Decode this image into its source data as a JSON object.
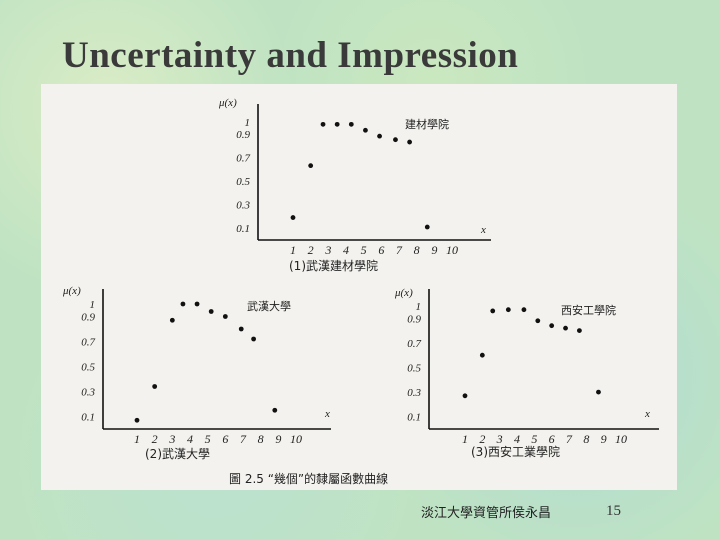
{
  "slide": {
    "title": "Uncertainty and Impression",
    "footer": "淡江大學資管所侯永昌",
    "page_number": "15",
    "figure_caption": "圖 2.5 “幾個”的隸屬函數曲線"
  },
  "chart_data": [
    {
      "type": "scatter",
      "subtitle": "(1)武漢建材學院",
      "legend": "建材學院",
      "ylabel": "μ(x)",
      "xlabel": "x",
      "y_ticks": [
        "1",
        "0.9",
        "0.7",
        "0.5",
        "0.3",
        "0.1"
      ],
      "y_tick_values": [
        1,
        0.9,
        0.7,
        0.5,
        0.3,
        0.1
      ],
      "x_ticks": [
        "1",
        "2",
        "3",
        "4",
        "5",
        "6",
        "7",
        "8",
        "9",
        "10"
      ],
      "ylim": [
        0,
        1.1
      ],
      "points": [
        {
          "x": 1,
          "y": 0.19
        },
        {
          "x": 2,
          "y": 0.63
        },
        {
          "x": 2.7,
          "y": 0.98
        },
        {
          "x": 3.5,
          "y": 0.98
        },
        {
          "x": 4.3,
          "y": 0.98
        },
        {
          "x": 5.1,
          "y": 0.93
        },
        {
          "x": 5.9,
          "y": 0.88
        },
        {
          "x": 6.8,
          "y": 0.85
        },
        {
          "x": 7.6,
          "y": 0.83
        },
        {
          "x": 8.6,
          "y": 0.11
        }
      ]
    },
    {
      "type": "scatter",
      "subtitle": "(2)武漢大學",
      "legend": "武漢大學",
      "ylabel": "μ(x)",
      "xlabel": "x",
      "y_ticks": [
        "1",
        "0.9",
        "0.7",
        "0.5",
        "0.3",
        "0.1"
      ],
      "y_tick_values": [
        1,
        0.9,
        0.7,
        0.5,
        0.3,
        0.1
      ],
      "x_ticks": [
        "1",
        "2",
        "3",
        "4",
        "5",
        "6",
        "7",
        "8",
        "9",
        "10"
      ],
      "ylim": [
        0,
        1.1
      ],
      "points": [
        {
          "x": 1,
          "y": 0.07
        },
        {
          "x": 2,
          "y": 0.34
        },
        {
          "x": 3,
          "y": 0.87
        },
        {
          "x": 3.6,
          "y": 1.0
        },
        {
          "x": 4.4,
          "y": 1.0
        },
        {
          "x": 5.2,
          "y": 0.94
        },
        {
          "x": 6,
          "y": 0.9
        },
        {
          "x": 6.9,
          "y": 0.8
        },
        {
          "x": 7.6,
          "y": 0.72
        },
        {
          "x": 8.8,
          "y": 0.15
        }
      ]
    },
    {
      "type": "scatter",
      "subtitle": "(3)西安工業學院",
      "legend": "西安工學院",
      "ylabel": "μ(x)",
      "xlabel": "x",
      "y_ticks": [
        "1",
        "0.9",
        "0.7",
        "0.5",
        "0.3",
        "0.1"
      ],
      "y_tick_values": [
        1,
        0.9,
        0.7,
        0.5,
        0.3,
        0.1
      ],
      "x_ticks": [
        "1",
        "2",
        "3",
        "4",
        "5",
        "6",
        "7",
        "8",
        "9",
        "10"
      ],
      "ylim": [
        0,
        1.1
      ],
      "points": [
        {
          "x": 1,
          "y": 0.27
        },
        {
          "x": 2,
          "y": 0.6
        },
        {
          "x": 2.6,
          "y": 0.96
        },
        {
          "x": 3.5,
          "y": 0.97
        },
        {
          "x": 4.4,
          "y": 0.97
        },
        {
          "x": 5.2,
          "y": 0.88
        },
        {
          "x": 6,
          "y": 0.84
        },
        {
          "x": 6.8,
          "y": 0.82
        },
        {
          "x": 7.6,
          "y": 0.8
        },
        {
          "x": 8.7,
          "y": 0.3
        }
      ]
    }
  ]
}
